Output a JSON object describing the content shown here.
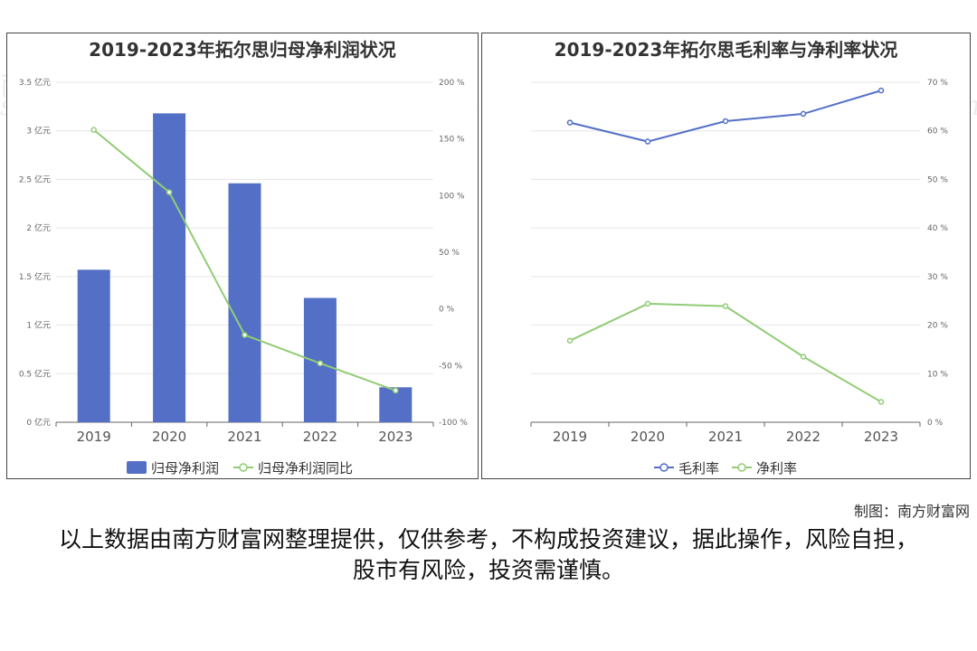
{
  "left_title": "2019-2023年拓尔思归母净利润状况",
  "right_title": "2019-2023年拓尔思毛利率与净利率状况",
  "credit": "制图：南方财富网",
  "disclaimer": "以上数据由南方财富网整理提供，仅供参考，不构成投资建议，据此操作，风险自担，股市有风险，投资需谨慎。",
  "watermark": {
    "cn": "南方财富网",
    "en": "southmoney.com"
  },
  "colors": {
    "bar": "#5470c6",
    "line_green": "#91cc75",
    "line_blue": "#5470c6"
  },
  "chart_data": [
    {
      "type": "bar",
      "title": "2019-2023年拓尔思归母净利润状况",
      "categories": [
        "2019",
        "2020",
        "2021",
        "2022",
        "2023"
      ],
      "y_left": {
        "ticks": [
          "0 亿元",
          "0.5 亿元",
          "1 亿元",
          "1.5 亿元",
          "2 亿元",
          "2.5 亿元",
          "3 亿元",
          "3.5 亿元"
        ],
        "ylim": [
          0,
          3.5
        ]
      },
      "y_right": {
        "ticks": [
          "-100 %",
          "-50 %",
          "0 %",
          "50 %",
          "100 %",
          "150 %",
          "200 %"
        ],
        "ylim": [
          -100,
          200
        ]
      },
      "series": [
        {
          "name": "归母净利润",
          "type": "bar",
          "axis": "left",
          "values": [
            1.57,
            3.18,
            2.46,
            1.28,
            0.36
          ]
        },
        {
          "name": "归母净利润同比",
          "type": "line",
          "axis": "right",
          "values": [
            158,
            103,
            -23,
            -48,
            -72
          ]
        }
      ],
      "legend": "bottom-center"
    },
    {
      "type": "line",
      "title": "2019-2023年拓尔思毛利率与净利率状况",
      "categories": [
        "2019",
        "2020",
        "2021",
        "2022",
        "2023"
      ],
      "y_right": {
        "ticks": [
          "0 %",
          "10 %",
          "20 %",
          "30 %",
          "40 %",
          "50 %",
          "60 %",
          "70 %"
        ],
        "ylim": [
          0,
          70
        ]
      },
      "series": [
        {
          "name": "毛利率",
          "type": "line",
          "values": [
            61.7,
            57.8,
            62.0,
            63.5,
            68.3
          ]
        },
        {
          "name": "净利率",
          "type": "line",
          "values": [
            16.8,
            24.4,
            23.9,
            13.5,
            4.2
          ]
        }
      ],
      "legend": "bottom-center"
    }
  ]
}
